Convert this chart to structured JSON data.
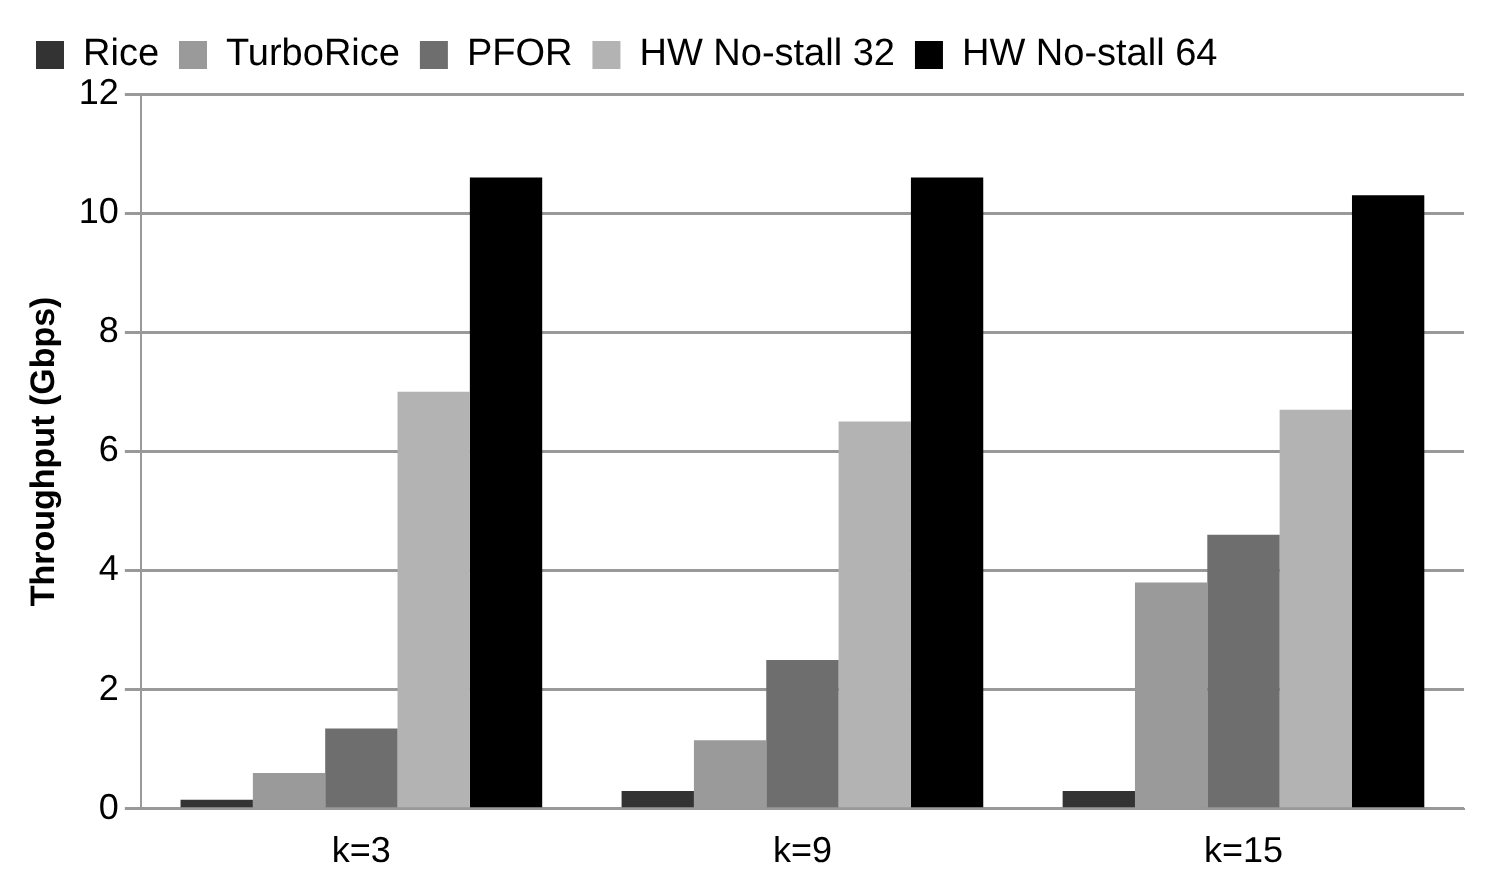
{
  "chart_data": {
    "type": "bar",
    "ylabel": "Throughput (Gbps)",
    "categories": [
      "k=3",
      "k=9",
      "k=15"
    ],
    "series": [
      {
        "name": "Rice",
        "color": "#333333",
        "values": [
          0.15,
          0.3,
          0.3
        ]
      },
      {
        "name": "TurboRice",
        "color": "#9a9a9a",
        "values": [
          0.6,
          1.15,
          3.8
        ]
      },
      {
        "name": "PFOR",
        "color": "#6e6e6e",
        "values": [
          1.35,
          2.5,
          4.6
        ]
      },
      {
        "name": "HW No-stall 32",
        "color": "#b3b3b3",
        "values": [
          7.0,
          6.5,
          6.7
        ]
      },
      {
        "name": "HW No-stall 64",
        "color": "#000000",
        "values": [
          10.6,
          10.6,
          10.3
        ]
      }
    ],
    "ylim": [
      0,
      12
    ],
    "yticks": [
      0,
      2,
      4,
      6,
      8,
      10,
      12
    ],
    "grid": "y",
    "legend": "top"
  }
}
